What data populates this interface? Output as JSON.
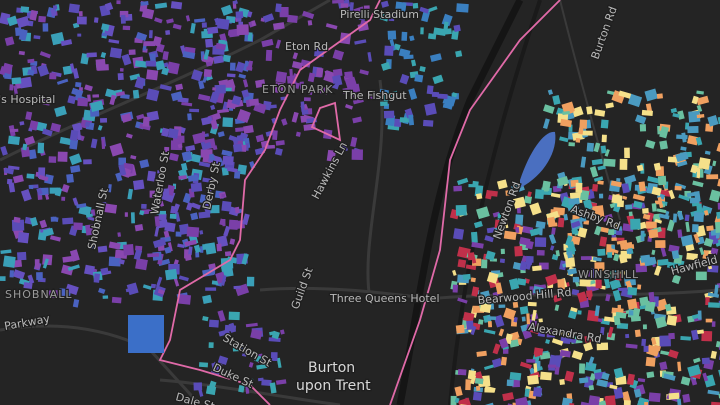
{
  "map": {
    "labels": [
      {
        "text": "Pirelli Stadium"
      },
      {
        "text": "Eton Rd"
      },
      {
        "text": "ETON PARK"
      },
      {
        "text": "The Fishgut"
      },
      {
        "text": "Queen's Hospital"
      },
      {
        "text": "Hawkins Ln"
      },
      {
        "text": "Waterloo St"
      },
      {
        "text": "Derby St"
      },
      {
        "text": "Shobnall St"
      },
      {
        "text": "SHOBNALL"
      },
      {
        "text": "Parkway"
      },
      {
        "text": "Guild St"
      },
      {
        "text": "Station St"
      },
      {
        "text": "Duke St"
      },
      {
        "text": "Dale St"
      },
      {
        "text": "Three Queens Hotel"
      },
      {
        "text": "Burton"
      },
      {
        "text": "upon Trent"
      },
      {
        "text": "Burton Rd"
      },
      {
        "text": "WINSHILL"
      },
      {
        "text": "Bearwood Hill Rd"
      },
      {
        "text": "Alexandra Rd"
      },
      {
        "text": "Hawfield Ln"
      },
      {
        "text": "Ashby Rd"
      },
      {
        "text": "Newton Rd"
      }
    ]
  }
}
